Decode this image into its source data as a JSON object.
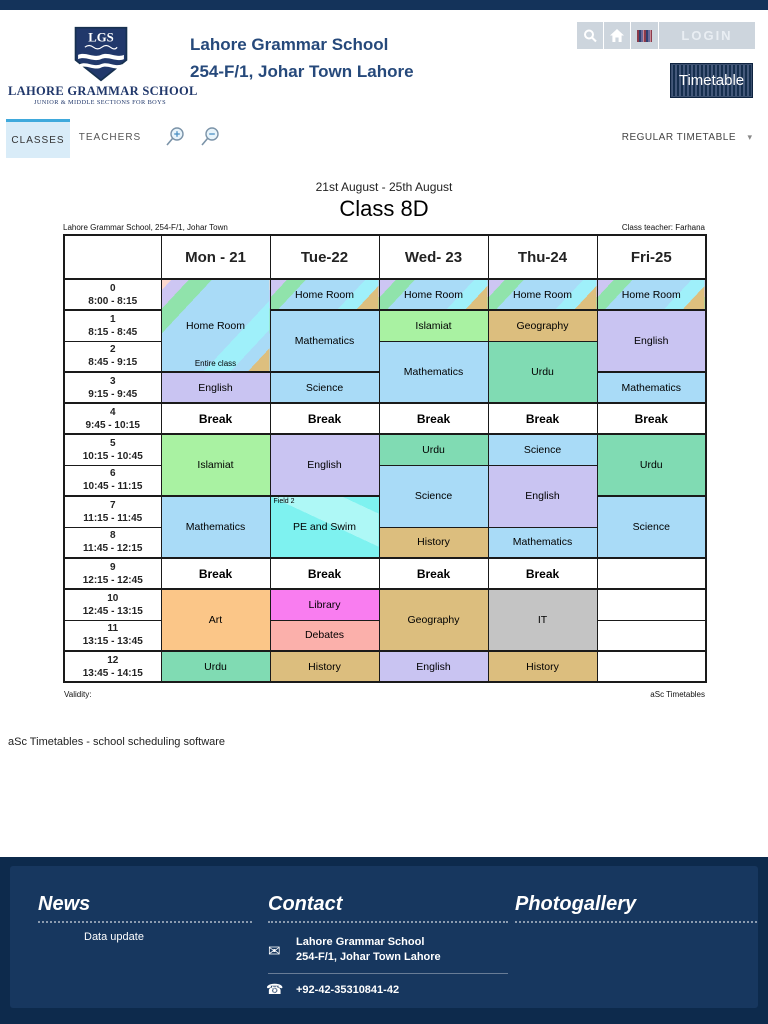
{
  "header": {
    "logo": {
      "acronym": "LGS",
      "name": "LAHORE GRAMMAR SCHOOL",
      "subtitle": "JUNIOR & MIDDLE SECTIONS FOR BOYS"
    },
    "title_line1": "Lahore Grammar School",
    "title_line2": "254-F/1, Johar Town Lahore",
    "login_label": "LOGIN",
    "timetable_label": "Timetable"
  },
  "icons": {
    "dropdown_caret": "▾",
    "mail": "✉",
    "phone": "☎"
  },
  "tabs": {
    "classes": "CLASSES",
    "teachers": "TEACHERS",
    "regular_timetable": "REGULAR TIMETABLE"
  },
  "main": {
    "date_range": "21st August - 25th August",
    "class_title": "Class 8D",
    "meta_left": "Lahore Grammar School, 254-F/1, Johar Town",
    "meta_right": "Class teacher: Farhana",
    "validity_label": "Validity:",
    "asc_label": "aSc Timetables",
    "credit": "aSc Timetables - school scheduling software"
  },
  "timetable": {
    "days": [
      "Mon - 21",
      "Tue-22",
      "Wed- 23",
      "Thu-24",
      "Fri-25"
    ],
    "periods": [
      {
        "num": "0",
        "time": "8:00 - 8:15"
      },
      {
        "num": "1",
        "time": "8:15 - 8:45"
      },
      {
        "num": "2",
        "time": "8:45 - 9:15"
      },
      {
        "num": "3",
        "time": "9:15 - 9:45"
      },
      {
        "num": "4",
        "time": "9:45 - 10:15"
      },
      {
        "num": "5",
        "time": "10:15 - 10:45"
      },
      {
        "num": "6",
        "time": "10:45 - 11:15"
      },
      {
        "num": "7",
        "time": "11:15 - 11:45"
      },
      {
        "num": "8",
        "time": "11:45 - 12:15"
      },
      {
        "num": "9",
        "time": "12:15 - 12:45"
      },
      {
        "num": "10",
        "time": "12:45 - 13:15"
      },
      {
        "num": "11",
        "time": "13:15 - 13:45"
      },
      {
        "num": "12",
        "time": "13:45 - 14:15"
      }
    ],
    "colors": {
      "blue": "#a9dbf7",
      "purple": "#c9c4f2",
      "green": "#a9f2a2",
      "teal": "#80dbb3",
      "tan": "#dcbe7e",
      "orange": "#fbc688",
      "magenta": "#f97df0",
      "pink": "#fbb0ab",
      "gray": "#c4c4c4",
      "white": "#ffffff"
    },
    "cells": [
      {
        "day": 0,
        "row": 0,
        "span": 3,
        "subject": "Home Room",
        "color": "homeroom_big",
        "note": "Entire class"
      },
      {
        "day": 0,
        "row": 3,
        "span": 1,
        "subject": "English",
        "color": "purple"
      },
      {
        "day": 0,
        "row": 4,
        "span": 1,
        "subject": "Break",
        "color": "white"
      },
      {
        "day": 0,
        "row": 5,
        "span": 2,
        "subject": "Islamiat",
        "color": "green"
      },
      {
        "day": 0,
        "row": 7,
        "span": 2,
        "subject": "Mathematics",
        "color": "blue"
      },
      {
        "day": 0,
        "row": 9,
        "span": 1,
        "subject": "Break",
        "color": "white"
      },
      {
        "day": 0,
        "row": 10,
        "span": 2,
        "subject": "Art",
        "color": "orange"
      },
      {
        "day": 0,
        "row": 12,
        "span": 1,
        "subject": "Urdu",
        "color": "teal"
      },
      {
        "day": 1,
        "row": 0,
        "span": 1,
        "subject": "Home Room",
        "color": "homeroom_small"
      },
      {
        "day": 1,
        "row": 1,
        "span": 2,
        "subject": "Mathematics",
        "color": "blue"
      },
      {
        "day": 1,
        "row": 3,
        "span": 1,
        "subject": "Science",
        "color": "blue"
      },
      {
        "day": 1,
        "row": 4,
        "span": 1,
        "subject": "Break",
        "color": "white"
      },
      {
        "day": 1,
        "row": 5,
        "span": 2,
        "subject": "English",
        "color": "purple"
      },
      {
        "day": 1,
        "row": 7,
        "span": 2,
        "subject": "PE and Swim",
        "color": "pe",
        "note_top": "Field 2"
      },
      {
        "day": 1,
        "row": 9,
        "span": 1,
        "subject": "Break",
        "color": "white"
      },
      {
        "day": 1,
        "row": 10,
        "span": 1,
        "subject": "Library",
        "color": "magenta"
      },
      {
        "day": 1,
        "row": 11,
        "span": 1,
        "subject": "Debates",
        "color": "pink"
      },
      {
        "day": 1,
        "row": 12,
        "span": 1,
        "subject": "History",
        "color": "tan"
      },
      {
        "day": 2,
        "row": 0,
        "span": 1,
        "subject": "Home Room",
        "color": "homeroom_small"
      },
      {
        "day": 2,
        "row": 1,
        "span": 1,
        "subject": "Islamiat",
        "color": "green"
      },
      {
        "day": 2,
        "row": 2,
        "span": 2,
        "subject": "Mathematics",
        "color": "blue"
      },
      {
        "day": 2,
        "row": 4,
        "span": 1,
        "subject": "Break",
        "color": "white"
      },
      {
        "day": 2,
        "row": 5,
        "span": 1,
        "subject": "Urdu",
        "color": "teal"
      },
      {
        "day": 2,
        "row": 6,
        "span": 2,
        "subject": "Science",
        "color": "blue"
      },
      {
        "day": 2,
        "row": 8,
        "span": 1,
        "subject": "History",
        "color": "tan"
      },
      {
        "day": 2,
        "row": 9,
        "span": 1,
        "subject": "Break",
        "color": "white"
      },
      {
        "day": 2,
        "row": 10,
        "span": 2,
        "subject": "Geography",
        "color": "tan"
      },
      {
        "day": 2,
        "row": 12,
        "span": 1,
        "subject": "English",
        "color": "purple"
      },
      {
        "day": 3,
        "row": 0,
        "span": 1,
        "subject": "Home Room",
        "color": "homeroom_small"
      },
      {
        "day": 3,
        "row": 1,
        "span": 1,
        "subject": "Geography",
        "color": "tan"
      },
      {
        "day": 3,
        "row": 2,
        "span": 2,
        "subject": "Urdu",
        "color": "teal"
      },
      {
        "day": 3,
        "row": 4,
        "span": 1,
        "subject": "Break",
        "color": "white"
      },
      {
        "day": 3,
        "row": 5,
        "span": 1,
        "subject": "Science",
        "color": "blue"
      },
      {
        "day": 3,
        "row": 6,
        "span": 2,
        "subject": "English",
        "color": "purple"
      },
      {
        "day": 3,
        "row": 8,
        "span": 1,
        "subject": "Mathematics",
        "color": "blue"
      },
      {
        "day": 3,
        "row": 9,
        "span": 1,
        "subject": "Break",
        "color": "white"
      },
      {
        "day": 3,
        "row": 10,
        "span": 2,
        "subject": "IT",
        "color": "gray"
      },
      {
        "day": 3,
        "row": 12,
        "span": 1,
        "subject": "History",
        "color": "tan"
      },
      {
        "day": 4,
        "row": 0,
        "span": 1,
        "subject": "Home Room",
        "color": "homeroom_small"
      },
      {
        "day": 4,
        "row": 1,
        "span": 2,
        "subject": "English",
        "color": "purple"
      },
      {
        "day": 4,
        "row": 3,
        "span": 1,
        "subject": "Mathematics",
        "color": "blue"
      },
      {
        "day": 4,
        "row": 4,
        "span": 1,
        "subject": "Break",
        "color": "white"
      },
      {
        "day": 4,
        "row": 5,
        "span": 2,
        "subject": "Urdu",
        "color": "teal"
      },
      {
        "day": 4,
        "row": 7,
        "span": 2,
        "subject": "Science",
        "color": "blue"
      },
      {
        "day": 4,
        "row": 9,
        "span": 1,
        "subject": "",
        "color": "white"
      },
      {
        "day": 4,
        "row": 10,
        "span": 1,
        "subject": "",
        "color": "white"
      },
      {
        "day": 4,
        "row": 11,
        "span": 1,
        "subject": "",
        "color": "white"
      },
      {
        "day": 4,
        "row": 12,
        "span": 1,
        "subject": "",
        "color": "white"
      }
    ]
  },
  "footer": {
    "news": {
      "heading": "News",
      "items": [
        "Data update"
      ]
    },
    "contact": {
      "heading": "Contact",
      "org": "Lahore Grammar School",
      "address": "254-F/1, Johar Town Lahore",
      "phone": "+92-42-35310841-42"
    },
    "photogallery": {
      "heading": "Photogallery"
    }
  }
}
